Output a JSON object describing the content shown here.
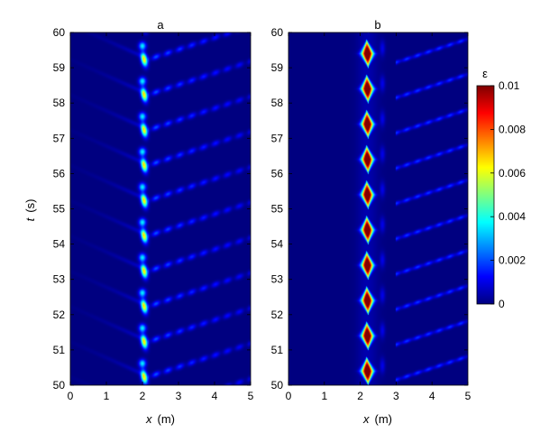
{
  "chart_data": [
    {
      "type": "heatmap",
      "title": "a",
      "xlabel_symbol": "x",
      "xlabel_unit": "(m)",
      "ylabel_symbol": "t",
      "ylabel_unit": "(s)",
      "xlim": [
        0,
        5
      ],
      "ylim": [
        50,
        60
      ],
      "xticks": [
        "0",
        "1",
        "2",
        "3",
        "4",
        "5"
      ],
      "yticks": [
        "50",
        "51",
        "52",
        "53",
        "54",
        "55",
        "56",
        "57",
        "58",
        "59",
        "60"
      ],
      "period_s": 1.0,
      "peak_x_m": 2.05,
      "peak_strain": 0.0065,
      "wave_speed_m_per_s": 3.0,
      "wave_strain": 0.0022
    },
    {
      "type": "heatmap",
      "title": "b",
      "xlabel_symbol": "x",
      "xlabel_unit": "(m)",
      "xlim": [
        0,
        5
      ],
      "ylim": [
        50,
        60
      ],
      "xticks": [
        "0",
        "1",
        "2",
        "3",
        "4",
        "5"
      ],
      "yticks": [
        "50",
        "51",
        "52",
        "53",
        "54",
        "55",
        "56",
        "57",
        "58",
        "59",
        "60"
      ],
      "period_s": 1.0,
      "peak_x_m": 2.2,
      "peak_strain": 0.01,
      "wave_speed_m_per_s": 3.0,
      "wave_strain": 0.0018
    }
  ],
  "colorbar": {
    "label": "ε",
    "min": 0,
    "max": 0.01,
    "ticks": [
      "0",
      "0.002",
      "0.004",
      "0.006",
      "0.008",
      "0.01"
    ],
    "colormap": "jet"
  }
}
